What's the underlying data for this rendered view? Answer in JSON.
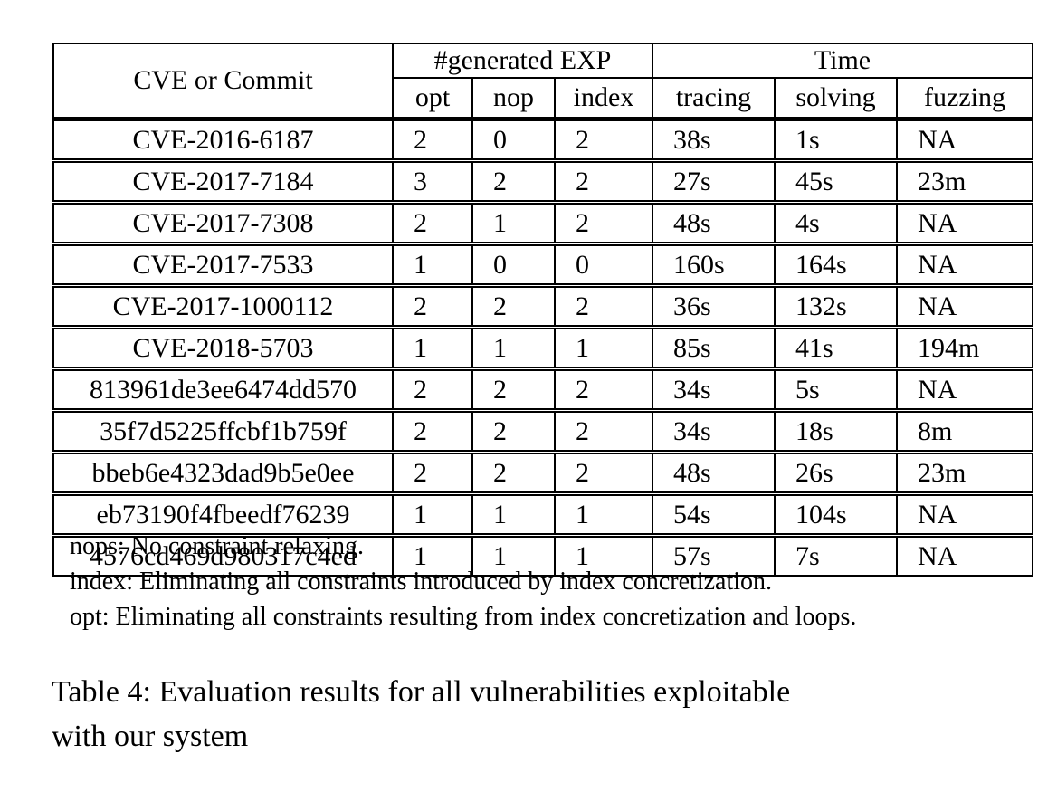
{
  "table": {
    "corner_header": "CVE or Commit",
    "group_headers": {
      "generated": "#generated EXP",
      "time": "Time"
    },
    "sub_headers": [
      "opt",
      "nop",
      "index",
      "tracing",
      "solving",
      "fuzzing"
    ],
    "rows": [
      {
        "id": "CVE-2016-6187",
        "opt": "2",
        "nop": "0",
        "index": "2",
        "tracing": "38s",
        "solving": "1s",
        "fuzzing": "NA"
      },
      {
        "id": "CVE-2017-7184",
        "opt": "3",
        "nop": "2",
        "index": "2",
        "tracing": "27s",
        "solving": "45s",
        "fuzzing": "23m"
      },
      {
        "id": "CVE-2017-7308",
        "opt": "2",
        "nop": "1",
        "index": "2",
        "tracing": "48s",
        "solving": "4s",
        "fuzzing": "NA"
      },
      {
        "id": "CVE-2017-7533",
        "opt": "1",
        "nop": "0",
        "index": "0",
        "tracing": "160s",
        "solving": "164s",
        "fuzzing": "NA"
      },
      {
        "id": "CVE-2017-1000112",
        "opt": "2",
        "nop": "2",
        "index": "2",
        "tracing": "36s",
        "solving": "132s",
        "fuzzing": "NA"
      },
      {
        "id": "CVE-2018-5703",
        "opt": "1",
        "nop": "1",
        "index": "1",
        "tracing": "85s",
        "solving": "41s",
        "fuzzing": "194m"
      },
      {
        "id": "813961de3ee6474dd570",
        "opt": "2",
        "nop": "2",
        "index": "2",
        "tracing": "34s",
        "solving": "5s",
        "fuzzing": "NA"
      },
      {
        "id": "35f7d5225ffcbf1b759f",
        "opt": "2",
        "nop": "2",
        "index": "2",
        "tracing": "34s",
        "solving": "18s",
        "fuzzing": "8m"
      },
      {
        "id": "bbeb6e4323dad9b5e0ee",
        "opt": "2",
        "nop": "2",
        "index": "2",
        "tracing": "48s",
        "solving": "26s",
        "fuzzing": "23m"
      },
      {
        "id": "eb73190f4fbeedf76239",
        "opt": "1",
        "nop": "1",
        "index": "1",
        "tracing": "54s",
        "solving": "104s",
        "fuzzing": "NA"
      },
      {
        "id": "4576cd469d980317c4ed",
        "opt": "1",
        "nop": "1",
        "index": "1",
        "tracing": "57s",
        "solving": "7s",
        "fuzzing": "NA"
      }
    ]
  },
  "footnotes": [
    "nops: No constraint relaxing.",
    "index: Eliminating all constraints introduced by index concretization.",
    "opt: Eliminating all constraints resulting from index concretization and loops."
  ],
  "caption": {
    "line1": "Table 4: Evaluation results for all vulnerabilities exploitable",
    "line2": "with our system"
  }
}
